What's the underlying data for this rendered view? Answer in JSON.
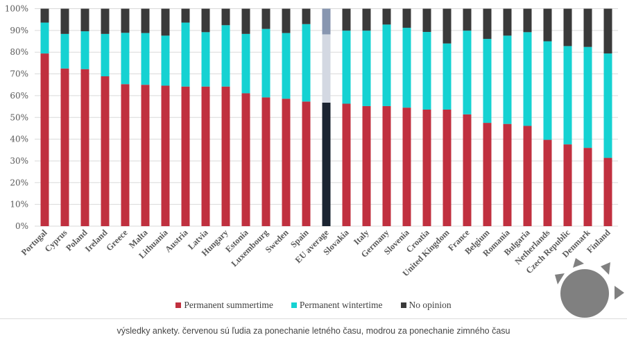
{
  "chart_data": {
    "type": "bar",
    "stacked": true,
    "percent_stacked": true,
    "title": "",
    "xlabel": "",
    "ylabel": "",
    "ylim": [
      0,
      100
    ],
    "yticks": [
      "0%",
      "10%",
      "20%",
      "30%",
      "40%",
      "50%",
      "60%",
      "70%",
      "80%",
      "90%",
      "100%"
    ],
    "grid": true,
    "legend_position": "bottom",
    "categories": [
      "Portugal",
      "Cyprus",
      "Poland",
      "Ireland",
      "Greece",
      "Malta",
      "Lithuania",
      "Austria",
      "Latvia",
      "Hungary",
      "Estonia",
      "Luxembourg",
      "Sweden",
      "Spain",
      "EU average",
      "Slovakia",
      "Italy",
      "Germany",
      "Slovenia",
      "Croatia",
      "United Kingdom",
      "France",
      "Belgium",
      "Romania",
      "Bulgaria",
      "Netherlands",
      "Czech Republic",
      "Denmark",
      "Finland"
    ],
    "highlight_category": "EU average",
    "series": [
      {
        "name": "Permanent summertime",
        "color": "#c0303f",
        "highlight_color": "#1b2431",
        "values": [
          79.4,
          72.5,
          72.2,
          68.9,
          65.3,
          65.0,
          64.6,
          64.2,
          64.2,
          64.2,
          61.1,
          59.2,
          58.6,
          57.3,
          56.8,
          56.3,
          55.2,
          55.2,
          54.5,
          53.6,
          53.6,
          51.4,
          47.5,
          47.0,
          46.1,
          39.7,
          37.6,
          36.0,
          31.4
        ]
      },
      {
        "name": "Permanent wintertime",
        "color": "#15d2d2",
        "highlight_color": "#d3d8e2",
        "values": [
          14.2,
          15.9,
          17.4,
          19.5,
          23.6,
          23.8,
          23.0,
          29.4,
          25.0,
          28.2,
          27.3,
          31.5,
          30.2,
          35.6,
          31.4,
          33.6,
          34.7,
          37.5,
          36.7,
          35.7,
          30.4,
          38.5,
          38.6,
          40.6,
          43.1,
          45.3,
          45.2,
          46.4,
          48.0
        ]
      },
      {
        "name": "No opinion",
        "color": "#3a3a3a",
        "highlight_color": "#8896b0",
        "values": [
          6.4,
          11.6,
          10.4,
          11.6,
          11.1,
          11.2,
          12.4,
          6.4,
          10.8,
          7.6,
          11.6,
          9.3,
          11.2,
          7.1,
          11.8,
          10.1,
          10.1,
          7.3,
          8.8,
          10.7,
          16.0,
          10.1,
          13.9,
          12.4,
          10.8,
          15.0,
          17.2,
          17.6,
          20.6
        ]
      }
    ]
  },
  "legend": {
    "items": [
      {
        "label": "Permanent summertime",
        "color": "#c0303f"
      },
      {
        "label": "Permanent wintertime",
        "color": "#15d2d2"
      },
      {
        "label": "No opinion",
        "color": "#3a3a3a"
      }
    ]
  },
  "caption": "výsledky ankety. červenou sú ľudia za ponechanie letného času, modrou za ponechanie zimného času",
  "decoration": {
    "icon": "sun-icon",
    "color": "#808080"
  }
}
